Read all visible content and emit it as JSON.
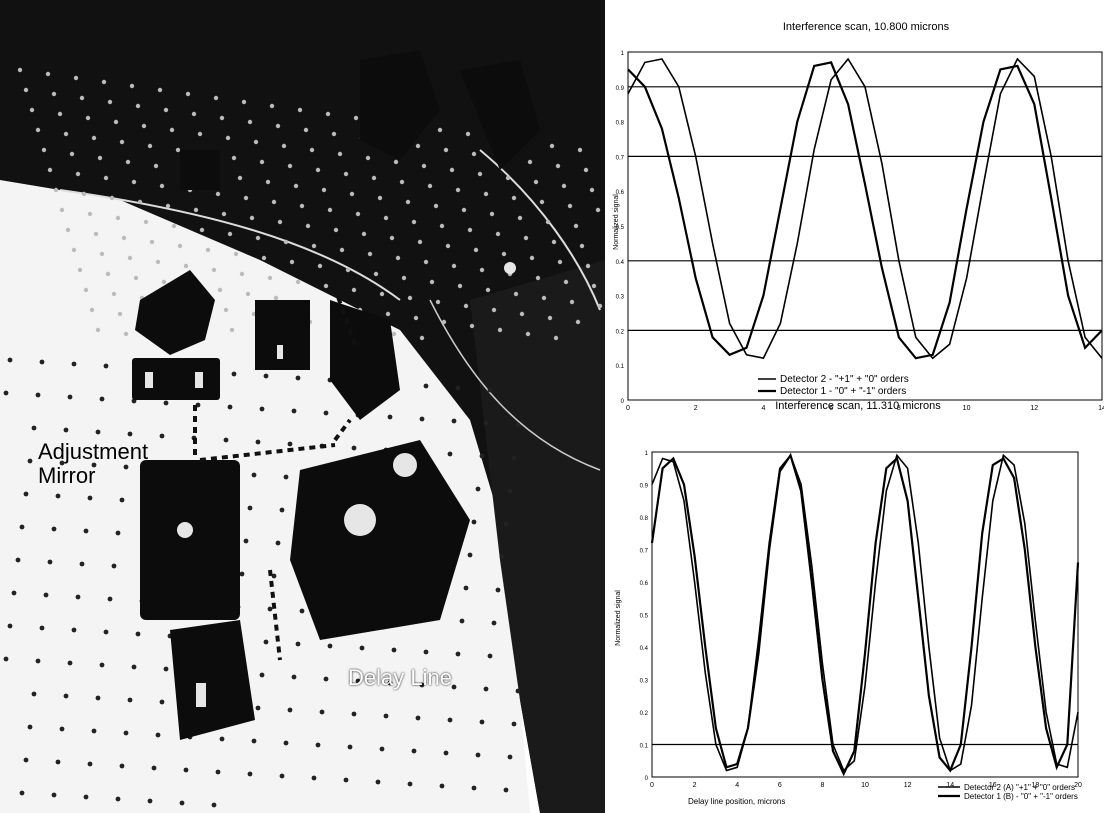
{
  "photo": {
    "labels": {
      "adjustment_mirror_line1": "Adjustment",
      "adjustment_mirror_line2": "Mirror",
      "delay_line": "Delay Line"
    }
  },
  "chart_data": [
    {
      "type": "line",
      "title": "Interference scan, 10.800 microns",
      "xlabel": "",
      "ylabel": "Normalized signal",
      "xlim": [
        0,
        14
      ],
      "ylim": [
        0,
        1
      ],
      "x_ticks": [
        "0",
        "2",
        "4",
        "6",
        "8",
        "10",
        "12",
        "14"
      ],
      "y_ticks": [
        "0",
        "0.1",
        "0.2",
        "0.3",
        "0.4",
        "0.5",
        "0.6",
        "0.7",
        "0.8",
        "0.9",
        "1"
      ],
      "legend": "bottom-center",
      "series": [
        {
          "name": "Detector 2 - \"+1\" + \"0\" orders",
          "x": [
            0,
            0.5,
            1,
            1.5,
            2,
            2.5,
            3,
            3.5,
            4,
            4.5,
            5,
            5.5,
            6,
            6.5,
            7,
            7.5,
            8,
            8.5,
            9,
            9.5,
            10,
            10.5,
            11,
            11.5,
            12,
            12.5,
            13,
            13.5,
            14
          ],
          "values": [
            0.88,
            0.97,
            0.98,
            0.9,
            0.7,
            0.45,
            0.22,
            0.13,
            0.12,
            0.22,
            0.45,
            0.72,
            0.92,
            0.98,
            0.9,
            0.68,
            0.4,
            0.18,
            0.12,
            0.16,
            0.35,
            0.62,
            0.88,
            0.98,
            0.93,
            0.7,
            0.4,
            0.18,
            0.12
          ]
        },
        {
          "name": "Detector 1 - \"0\" + \"-1\" orders",
          "x": [
            0,
            0.5,
            1,
            1.5,
            2,
            2.5,
            3,
            3.5,
            4,
            4.5,
            5,
            5.5,
            6,
            6.5,
            7,
            7.5,
            8,
            8.5,
            9,
            9.5,
            10,
            10.5,
            11,
            11.5,
            12,
            12.5,
            13,
            13.5,
            14
          ],
          "values": [
            0.95,
            0.9,
            0.78,
            0.58,
            0.35,
            0.18,
            0.13,
            0.15,
            0.3,
            0.55,
            0.8,
            0.96,
            0.97,
            0.85,
            0.62,
            0.38,
            0.18,
            0.12,
            0.13,
            0.28,
            0.55,
            0.8,
            0.95,
            0.96,
            0.85,
            0.58,
            0.3,
            0.15,
            0.2
          ]
        }
      ]
    },
    {
      "type": "line",
      "title": "Interference scan, 11.310 microns",
      "xlabel": "Delay line position, microns",
      "ylabel": "Normalized signal",
      "xlim": [
        0,
        20
      ],
      "ylim": [
        0,
        1
      ],
      "x_ticks": [
        "0",
        "2",
        "4",
        "6",
        "8",
        "10",
        "12",
        "14",
        "16",
        "18",
        "20"
      ],
      "y_ticks": [
        "0",
        "0.1",
        "0.2",
        "0.3",
        "0.4",
        "0.5",
        "0.6",
        "0.7",
        "0.8",
        "0.9",
        "1"
      ],
      "legend": "bottom-right",
      "series": [
        {
          "name": "Detector 2 (A) \"+1\" + \"0\" orders",
          "x": [
            0,
            0.5,
            1,
            1.5,
            2,
            2.5,
            3,
            3.5,
            4,
            4.5,
            5,
            5.5,
            6,
            6.5,
            7,
            7.5,
            8,
            8.5,
            9,
            9.5,
            10,
            10.5,
            11,
            11.5,
            12,
            12.5,
            13,
            13.5,
            14,
            14.5,
            15,
            15.5,
            16,
            16.5,
            17,
            17.5,
            18,
            18.5,
            19,
            19.5,
            20
          ],
          "values": [
            0.9,
            0.98,
            0.97,
            0.85,
            0.6,
            0.32,
            0.1,
            0.02,
            0.03,
            0.15,
            0.42,
            0.72,
            0.95,
            0.99,
            0.9,
            0.65,
            0.35,
            0.1,
            0.02,
            0.05,
            0.28,
            0.6,
            0.88,
            0.99,
            0.95,
            0.72,
            0.4,
            0.12,
            0.02,
            0.04,
            0.22,
            0.55,
            0.85,
            0.99,
            0.96,
            0.78,
            0.48,
            0.2,
            0.04,
            0.03,
            0.2
          ]
        },
        {
          "name": "Detector 1 (B) - \"0\" + \"-1\" orders",
          "x": [
            0,
            0.5,
            1,
            1.5,
            2,
            2.5,
            3,
            3.5,
            4,
            4.5,
            5,
            5.5,
            6,
            6.5,
            7,
            7.5,
            8,
            8.5,
            9,
            9.5,
            10,
            10.5,
            11,
            11.5,
            12,
            12.5,
            13,
            13.5,
            14,
            14.5,
            15,
            15.5,
            16,
            16.5,
            17,
            17.5,
            18,
            18.5,
            19,
            19.5,
            20
          ],
          "values": [
            0.72,
            0.95,
            0.98,
            0.9,
            0.68,
            0.4,
            0.15,
            0.03,
            0.04,
            0.15,
            0.38,
            0.7,
            0.94,
            0.99,
            0.88,
            0.6,
            0.3,
            0.08,
            0.01,
            0.08,
            0.38,
            0.72,
            0.95,
            0.98,
            0.85,
            0.55,
            0.25,
            0.06,
            0.02,
            0.1,
            0.4,
            0.75,
            0.96,
            0.98,
            0.92,
            0.7,
            0.4,
            0.15,
            0.03,
            0.1,
            0.66
          ]
        }
      ]
    }
  ]
}
